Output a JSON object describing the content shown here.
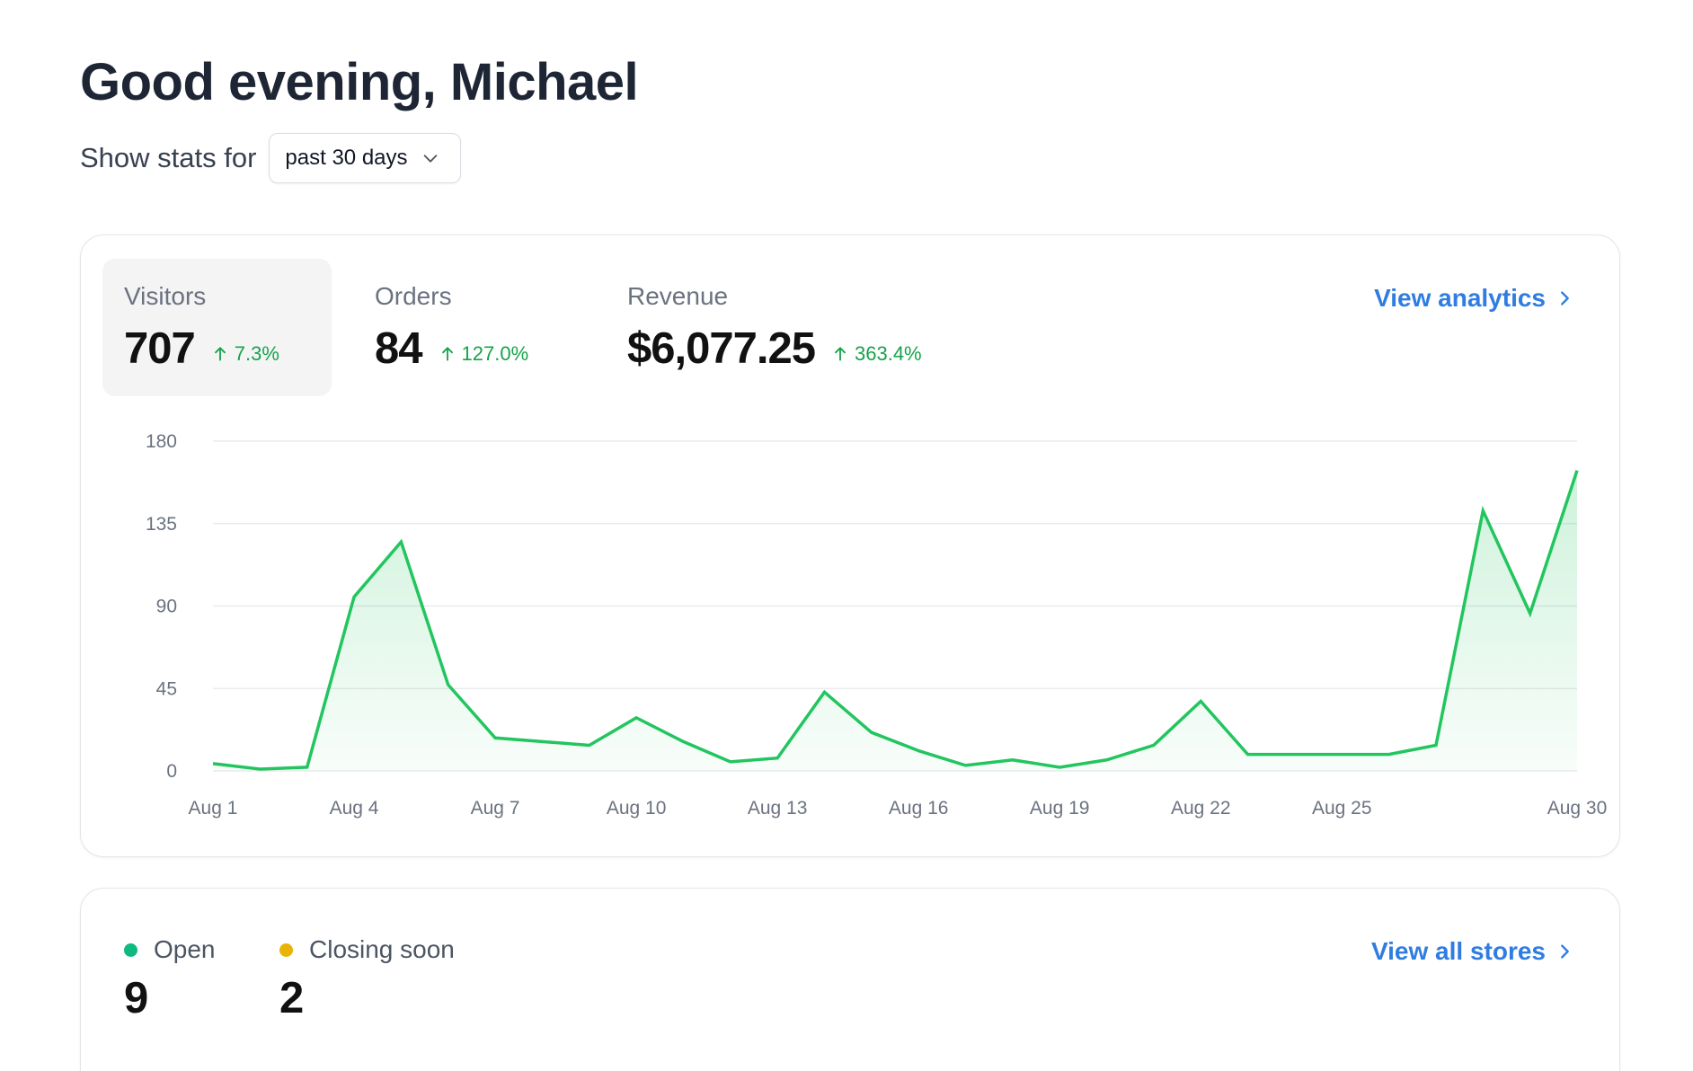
{
  "header": {
    "greeting": "Good evening, Michael",
    "stats_label": "Show stats for",
    "range_value": "past 30 days"
  },
  "metrics": [
    {
      "label": "Visitors",
      "value": "707",
      "change": "7.3%",
      "active": true
    },
    {
      "label": "Orders",
      "value": "84",
      "change": "127.0%",
      "active": false
    },
    {
      "label": "Revenue",
      "value": "$6,077.25",
      "change": "363.4%",
      "active": false
    }
  ],
  "analytics_link": "View analytics",
  "stores": {
    "link": "View all stores",
    "items": [
      {
        "label": "Open",
        "value": "9",
        "color": "#10b981"
      },
      {
        "label": "Closing soon",
        "value": "2",
        "color": "#eab308"
      }
    ]
  },
  "colors": {
    "accent_link": "#2f7de1",
    "positive": "#16a34a",
    "line": "#22c55e"
  },
  "chart_data": {
    "type": "area",
    "series_label": "Visitors",
    "x": [
      "Aug 1",
      "Aug 2",
      "Aug 3",
      "Aug 4",
      "Aug 5",
      "Aug 6",
      "Aug 7",
      "Aug 8",
      "Aug 9",
      "Aug 10",
      "Aug 11",
      "Aug 12",
      "Aug 13",
      "Aug 14",
      "Aug 15",
      "Aug 16",
      "Aug 17",
      "Aug 18",
      "Aug 19",
      "Aug 20",
      "Aug 21",
      "Aug 22",
      "Aug 23",
      "Aug 24",
      "Aug 25",
      "Aug 26",
      "Aug 27",
      "Aug 28",
      "Aug 29",
      "Aug 30"
    ],
    "values": [
      4,
      1,
      2,
      95,
      125,
      47,
      18,
      16,
      14,
      29,
      16,
      5,
      7,
      43,
      21,
      11,
      3,
      6,
      2,
      6,
      14,
      38,
      9,
      9,
      9,
      9,
      14,
      142,
      86,
      164
    ],
    "xtick_labels": [
      "Aug 1",
      "Aug 4",
      "Aug 7",
      "Aug 10",
      "Aug 13",
      "Aug 16",
      "Aug 19",
      "Aug 22",
      "Aug 25",
      "Aug 30"
    ],
    "yticks": [
      0,
      45,
      90,
      135,
      180
    ],
    "ylim": [
      0,
      180
    ],
    "grid": true
  }
}
